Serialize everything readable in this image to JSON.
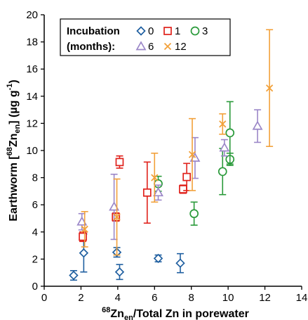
{
  "chart_data": {
    "type": "scatter",
    "xlabel": {
      "pre_sup": "68",
      "main": "Zn",
      "sub": "en",
      "rest": "/Total Zn in porewater"
    },
    "ylabel": {
      "pre": "Earthworm [",
      "sup": "68",
      "main": "Zn",
      "sub": "en",
      "post": "] (µg g",
      "sup2": "-1",
      "end": ")"
    },
    "xlim": [
      0,
      14
    ],
    "ylim": [
      0,
      20
    ],
    "x_ticks": [
      0,
      2,
      4,
      6,
      8,
      10,
      12,
      14
    ],
    "y_ticks": [
      0,
      2,
      4,
      6,
      8,
      10,
      12,
      14,
      16,
      18,
      20
    ],
    "grid": false,
    "legend": {
      "title_line1": "Incubation",
      "title_line2": "(months):",
      "placement": "top-left"
    },
    "series": [
      {
        "name": "0",
        "marker": "diamond",
        "color": "#1f5fa0",
        "points": [
          {
            "x": 1.6,
            "y": 0.8,
            "err": 0.35
          },
          {
            "x": 2.15,
            "y": 2.45,
            "err": 1.4
          },
          {
            "x": 3.95,
            "y": 2.5,
            "err": 0.35
          },
          {
            "x": 4.1,
            "y": 1.05,
            "err": 0.55
          },
          {
            "x": 6.2,
            "y": 2.05,
            "err": 0.25
          },
          {
            "x": 7.4,
            "y": 1.7,
            "err": 0.7
          }
        ]
      },
      {
        "name": "1",
        "marker": "square",
        "color": "#e0211b",
        "points": [
          {
            "x": 2.1,
            "y": 3.65,
            "err": 0.35
          },
          {
            "x": 3.9,
            "y": 5.1,
            "err": 0.3
          },
          {
            "x": 4.1,
            "y": 9.15,
            "err": 0.45
          },
          {
            "x": 5.6,
            "y": 6.9,
            "err": 2.25
          },
          {
            "x": 7.55,
            "y": 7.15,
            "err": 0.3
          },
          {
            "x": 7.75,
            "y": 8.05,
            "err": 1.0
          }
        ]
      },
      {
        "name": "3",
        "marker": "circle",
        "color": "#2a9a3a",
        "points": [
          {
            "x": 6.2,
            "y": 7.55,
            "err": 0.55
          },
          {
            "x": 8.15,
            "y": 5.35,
            "err": 0.85
          },
          {
            "x": 9.7,
            "y": 8.45,
            "err": 1.7
          },
          {
            "x": 10.1,
            "y": 9.35,
            "err": 0.45
          },
          {
            "x": 10.1,
            "y": 11.3,
            "err": 2.3
          }
        ]
      },
      {
        "name": "6",
        "marker": "triangle",
        "color": "#9b87c8",
        "points": [
          {
            "x": 2.05,
            "y": 4.75,
            "err": 0.6
          },
          {
            "x": 3.8,
            "y": 5.85,
            "err": 2.4
          },
          {
            "x": 6.2,
            "y": 6.9,
            "err": 0.55
          },
          {
            "x": 8.2,
            "y": 9.45,
            "err": 1.5
          },
          {
            "x": 9.8,
            "y": 10.2,
            "err": 0.6
          },
          {
            "x": 11.6,
            "y": 11.8,
            "err": 1.2
          }
        ]
      },
      {
        "name": "12",
        "marker": "x",
        "color": "#f2a13a",
        "points": [
          {
            "x": 2.2,
            "y": 4.2,
            "err": 1.3
          },
          {
            "x": 3.95,
            "y": 5.1,
            "err": 2.8
          },
          {
            "x": 6.0,
            "y": 8.0,
            "err": 1.8
          },
          {
            "x": 8.05,
            "y": 9.7,
            "err": 2.65
          },
          {
            "x": 9.7,
            "y": 11.95,
            "err": 0.75
          },
          {
            "x": 12.25,
            "y": 14.6,
            "err": 4.3
          }
        ]
      }
    ]
  }
}
